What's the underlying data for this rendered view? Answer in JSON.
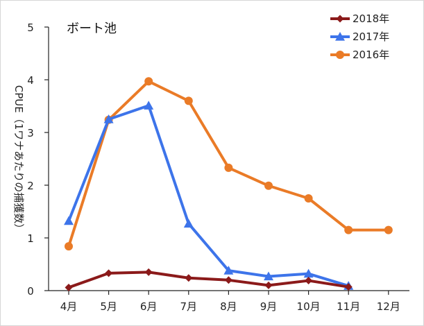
{
  "chart_data": {
    "type": "line",
    "title": "ボート池",
    "xlabel": "",
    "ylabel": "CPUE（1ワナあたりの捕獲数）",
    "categories": [
      "4月",
      "5月",
      "6月",
      "7月",
      "8月",
      "9月",
      "10月",
      "11月",
      "12月"
    ],
    "ylim": [
      0,
      5
    ],
    "yticks": [
      0,
      1,
      2,
      3,
      4,
      5
    ],
    "grid": false,
    "legend_position": "top-right",
    "series": [
      {
        "name": "2018年",
        "color": "#8b1a1a",
        "marker": "diamond",
        "values": [
          0.06,
          0.33,
          0.35,
          0.24,
          0.2,
          0.1,
          0.19,
          0.07,
          null
        ]
      },
      {
        "name": "2017年",
        "color": "#3d74ea",
        "marker": "triangle",
        "values": [
          1.32,
          3.25,
          3.51,
          1.27,
          0.38,
          0.27,
          0.32,
          0.09,
          null
        ]
      },
      {
        "name": "2016年",
        "color": "#ea7b27",
        "marker": "circle",
        "values": [
          0.84,
          3.24,
          3.97,
          3.6,
          2.33,
          1.99,
          1.75,
          1.15,
          1.15
        ]
      }
    ]
  }
}
